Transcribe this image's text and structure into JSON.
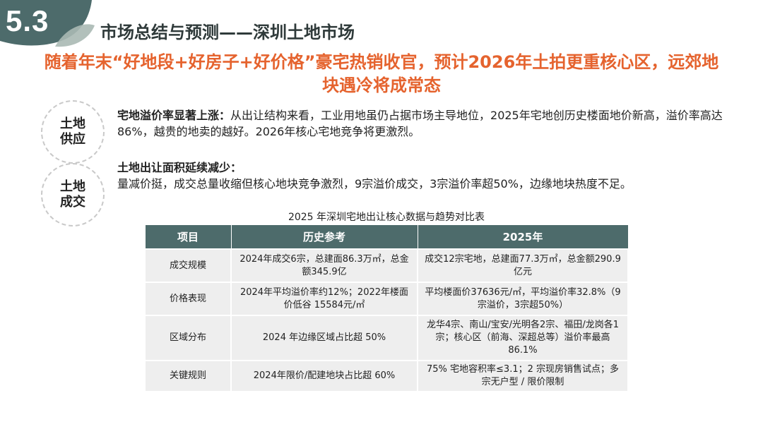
{
  "section": {
    "number": "5.3"
  },
  "title": "市场总结与预测——深圳土地市场",
  "headline": "随着年末“好地段+好房子+好价格”豪宅热销收官，预计2026年土拍更重核心区，远郊地块遇冷将成常态",
  "blocks": [
    {
      "tag": "土地供应",
      "lead": "宅地溢价率显著上涨：",
      "text": "从出让结构来看，工业用地虽仍占据市场主导地位，2025年宅地创历史楼面地价新高，溢价率高达86%，越贵的地卖的越好。2026年核心宅地竞争将更激烈。"
    },
    {
      "tag": "土地成交",
      "lead": "土地出让面积延续减少：",
      "text": "量减价挺，成交总量收缩但核心地块竞争激烈，9宗溢价成交，3宗溢价率超50%，边缘地块热度不足。"
    }
  ],
  "table": {
    "title": "2025 年深圳宅地出让核心数据与趋势对比表",
    "headers": [
      "项目",
      "历史参考",
      "2025年"
    ],
    "rows": [
      [
        "成交规模",
        "2024年成交6宗，总建面86.3万㎡，总金额345.9亿",
        "成交12宗宅地，总建面77.3万㎡，总金额290.9亿元"
      ],
      [
        "价格表现",
        "2024年平均溢价率约12%；2022年楼面价低谷 15584元/㎡",
        "平均楼面价37636元/㎡，平均溢价率32.8%（9宗溢价，3宗超50%）"
      ],
      [
        "区域分布",
        "2024 年边缘区域占比超 50%",
        "龙华4宗、南山/宝安/光明各2宗、福田/龙岗各1宗；核心区（前海、深超总等）溢价率最高 86.1%"
      ],
      [
        "关键规则",
        "2024年限价/配建地块占比超 60%",
        "75% 宅地容积率≤3.1；2 宗现房销售试点；多宗无户型 / 限价限制"
      ]
    ]
  },
  "colors": {
    "accent": "#e5632e",
    "teal": "#4d6b6b",
    "cell": "#eeeeee"
  }
}
